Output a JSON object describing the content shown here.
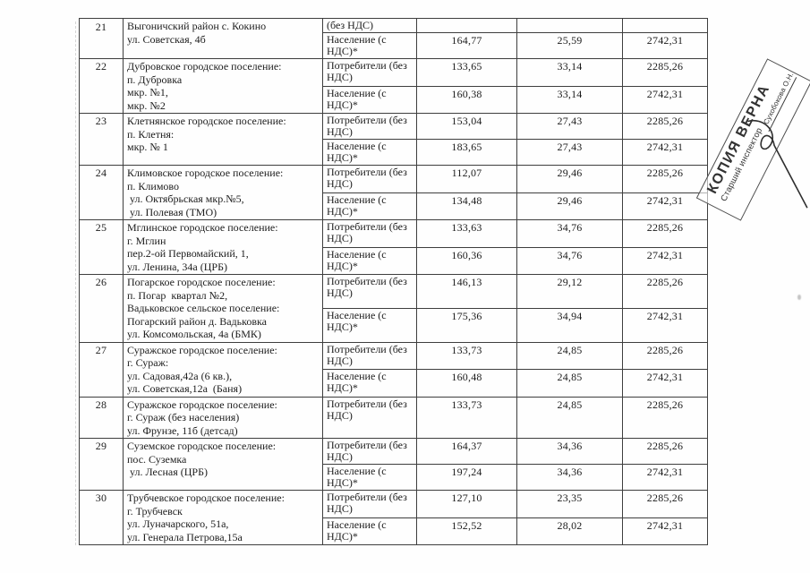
{
  "stamp": {
    "title": "КОПИЯ ВЕРНА",
    "subtitle": "Старший инспектор",
    "name": "Сухобокова О.Н."
  },
  "table": {
    "entries": [
      {
        "num": "21",
        "name_lines": [
          "Выгоничский район с. Кокино",
          "ул. Советская, 4б"
        ],
        "rows": [
          {
            "consumer": "(без НДС)",
            "values": [
              "",
              "",
              ""
            ]
          },
          {
            "consumer": "Население (с НДС)*",
            "values": [
              "164,77",
              "25,59",
              "2742,31"
            ]
          }
        ]
      },
      {
        "num": "22",
        "name_lines": [
          "Дубровское городское поселение:",
          "п. Дубровка",
          "мкр. №1,",
          "мкр. №2"
        ],
        "rows": [
          {
            "consumer": "Потребители (без НДС)",
            "values": [
              "133,65",
              "33,14",
              "2285,26"
            ]
          },
          {
            "consumer": "Население (с НДС)*",
            "values": [
              "160,38",
              "33,14",
              "2742,31"
            ]
          }
        ]
      },
      {
        "num": "23",
        "name_lines": [
          "Клетнянское городское поселение:",
          "п. Клетня:",
          "мкр. № 1"
        ],
        "rows": [
          {
            "consumer": "Потребители (без НДС)",
            "values": [
              "153,04",
              "27,43",
              "2285,26"
            ]
          },
          {
            "consumer": "Население (с НДС)*",
            "values": [
              "183,65",
              "27,43",
              "2742,31"
            ]
          }
        ]
      },
      {
        "num": "24",
        "name_lines": [
          "Климовское городское поселение:",
          "п. Климово",
          " ул. Октябрьская мкр.№5,",
          " ул. Полевая (ТМО)"
        ],
        "rows": [
          {
            "consumer": "Потребители (без НДС)",
            "values": [
              "112,07",
              "29,46",
              "2285,26"
            ]
          },
          {
            "consumer": "Население (с НДС)*",
            "values": [
              "134,48",
              "29,46",
              "2742,31"
            ]
          }
        ]
      },
      {
        "num": "25",
        "name_lines": [
          "Мглинское городское поселение:",
          "г. Мглин",
          "пер.2-ой Первомайский, 1,",
          "ул. Ленина, 34а (ЦРБ)"
        ],
        "rows": [
          {
            "consumer": "Потребители (без НДС)",
            "values": [
              "133,63",
              "34,76",
              "2285,26"
            ]
          },
          {
            "consumer": "Население (с НДС)*",
            "values": [
              "160,36",
              "34,76",
              "2742,31"
            ]
          }
        ]
      },
      {
        "num": "26",
        "name_lines": [
          "Погарское городское поселение:",
          "п. Погар  квартал №2,",
          "Вадьковское сельское поселение:",
          "Погарский район д. Вадьковка",
          "ул. Комсомольская, 4а (БМК)"
        ],
        "rows": [
          {
            "consumer": "Потребители (без НДС)",
            "values": [
              "146,13",
              "29,12",
              "2285,26"
            ]
          },
          {
            "consumer": "Население (с НДС)*",
            "values": [
              "175,36",
              "34,94",
              "2742,31"
            ]
          }
        ]
      },
      {
        "num": "27",
        "name_lines": [
          "Суражское городское поселение:",
          "г. Сураж:",
          "ул. Садовая,42а (6 кв.),",
          "ул. Советская,12а  (Баня)"
        ],
        "rows": [
          {
            "consumer": "Потребители (без НДС)",
            "values": [
              "133,73",
              "24,85",
              "2285,26"
            ]
          },
          {
            "consumer": "Население (с НДС)*",
            "values": [
              "160,48",
              "24,85",
              "2742,31"
            ]
          }
        ]
      },
      {
        "num": "28",
        "name_lines": [
          "Суражское городское поселение:",
          "г. Сураж (без населения)",
          "ул. Фрунзе, 11б (детсад)"
        ],
        "rows": [
          {
            "consumer": "Потребители (без НДС)",
            "values": [
              "133,73",
              "24,85",
              "2285,26"
            ]
          }
        ]
      },
      {
        "num": "29",
        "name_lines": [
          "Суземское городское поселение:",
          "пос. Суземка",
          " ул. Лесная (ЦРБ)"
        ],
        "rows": [
          {
            "consumer": "Потребители (без НДС)",
            "values": [
              "164,37",
              "34,36",
              "2285,26"
            ]
          },
          {
            "consumer": "Население (с НДС)*",
            "values": [
              "197,24",
              "34,36",
              "2742,31"
            ]
          }
        ]
      },
      {
        "num": "30",
        "name_lines": [
          "Трубчевское городское поселение:",
          "г. Трубчевск",
          "ул. Луначарского, 51а,",
          "ул. Генерала Петрова,15а"
        ],
        "rows": [
          {
            "consumer": "Потребители (без НДС)",
            "values": [
              "127,10",
              "23,35",
              "2285,26"
            ]
          },
          {
            "consumer": "Население (с НДС)*",
            "values": [
              "152,52",
              "28,02",
              "2742,31"
            ]
          }
        ]
      }
    ]
  }
}
